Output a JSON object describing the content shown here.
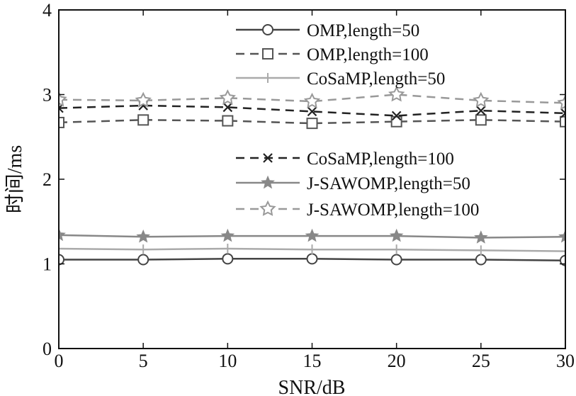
{
  "chart_data": {
    "type": "line",
    "xlabel": "SNR/dB",
    "ylabel": "时间/ms",
    "xlim": [
      0,
      30
    ],
    "ylim": [
      0,
      4
    ],
    "xticks": [
      "0",
      "5",
      "10",
      "15",
      "20",
      "25",
      "30"
    ],
    "yticks": [
      "0",
      "1",
      "2",
      "3",
      "4"
    ],
    "grid": false,
    "legend_position": "top-right",
    "x": [
      0,
      5,
      10,
      15,
      20,
      25,
      30
    ],
    "series": [
      {
        "name": "OMP,length=50",
        "values": [
          1.05,
          1.05,
          1.06,
          1.06,
          1.05,
          1.05,
          1.04
        ],
        "line_style": "solid",
        "marker": "circle",
        "color": "#444444"
      },
      {
        "name": "OMP,length=100",
        "values": [
          2.67,
          2.7,
          2.69,
          2.66,
          2.68,
          2.7,
          2.68
        ],
        "line_style": "dashed",
        "marker": "square",
        "color": "#555555"
      },
      {
        "name": "CoSaMP,length=50",
        "values": [
          1.18,
          1.17,
          1.18,
          1.17,
          1.17,
          1.16,
          1.15
        ],
        "line_style": "solid",
        "marker": "plus",
        "color": "#aaaaaa"
      },
      {
        "name": "CoSaMP,length=100",
        "values": [
          2.84,
          2.87,
          2.85,
          2.8,
          2.75,
          2.81,
          2.78
        ],
        "line_style": "dashed",
        "marker": "x",
        "color": "#222222"
      },
      {
        "name": "J-SAWOMP,length=50",
        "values": [
          1.34,
          1.32,
          1.33,
          1.33,
          1.33,
          1.31,
          1.32
        ],
        "line_style": "solid",
        "marker": "star",
        "color": "#888888"
      },
      {
        "name": "J-SAWOMP,length=100",
        "values": [
          2.94,
          2.93,
          2.96,
          2.92,
          3.0,
          2.93,
          2.9
        ],
        "line_style": "dashed",
        "marker": "star-outline",
        "color": "#999999"
      }
    ]
  }
}
